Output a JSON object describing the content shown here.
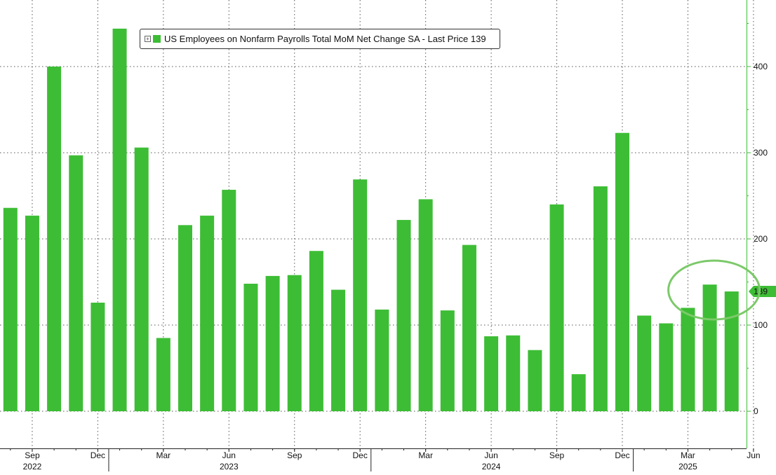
{
  "chart_data": {
    "type": "bar",
    "legend": {
      "label": "US Employees on Nonfarm Payrolls Total MoM Net Change SA - Last Price 139",
      "toggle_glyph": "+",
      "placement": "top-left"
    },
    "series_color": "#3dbd35",
    "annotation_color": "#7cc96a",
    "last_price": {
      "value": 139,
      "label": "139"
    },
    "categories": [
      "2022-08",
      "2022-09",
      "2022-10",
      "2022-11",
      "2022-12",
      "2023-01",
      "2023-02",
      "2023-03",
      "2023-04",
      "2023-05",
      "2023-06",
      "2023-07",
      "2023-08",
      "2023-09",
      "2023-10",
      "2023-11",
      "2023-12",
      "2024-01",
      "2024-02",
      "2024-03",
      "2024-04",
      "2024-05",
      "2024-06",
      "2024-07",
      "2024-08",
      "2024-09",
      "2024-10",
      "2024-11",
      "2024-12",
      "2025-01",
      "2025-02",
      "2025-03",
      "2025-04",
      "2025-05"
    ],
    "values": [
      236,
      227,
      400,
      297,
      126,
      444,
      306,
      85,
      216,
      227,
      257,
      148,
      157,
      158,
      186,
      141,
      269,
      118,
      222,
      246,
      117,
      193,
      87,
      88,
      71,
      240,
      43,
      261,
      323,
      111,
      102,
      120,
      147,
      139
    ],
    "ylim": [
      -40,
      475
    ],
    "y_ticks": [
      0,
      100,
      200,
      300,
      400
    ],
    "y_tick_labels": [
      "0",
      "100",
      "200",
      "300",
      "400"
    ],
    "month_ticks": [
      {
        "label": "Sep",
        "index": 1
      },
      {
        "label": "Dec",
        "index": 4
      },
      {
        "label": "Mar",
        "index": 7
      },
      {
        "label": "Jun",
        "index": 10
      },
      {
        "label": "Sep",
        "index": 13
      },
      {
        "label": "Dec",
        "index": 16
      },
      {
        "label": "Mar",
        "index": 19
      },
      {
        "label": "Jun",
        "index": 22
      },
      {
        "label": "Sep",
        "index": 25
      },
      {
        "label": "Dec",
        "index": 28
      },
      {
        "label": "Mar",
        "index": 31
      },
      {
        "label": "Jun",
        "index": 34
      }
    ],
    "year_ticks": [
      {
        "label": "2022",
        "index": 1
      },
      {
        "label": "2023",
        "index": 10
      },
      {
        "label": "2024",
        "index": 22
      },
      {
        "label": "2025",
        "index": 31
      }
    ],
    "year_separators": [
      4.5,
      16.5,
      28.5
    ],
    "grid": true,
    "highlight_ellipse": {
      "index_start": 31,
      "index_end": 33,
      "value": 139
    }
  }
}
